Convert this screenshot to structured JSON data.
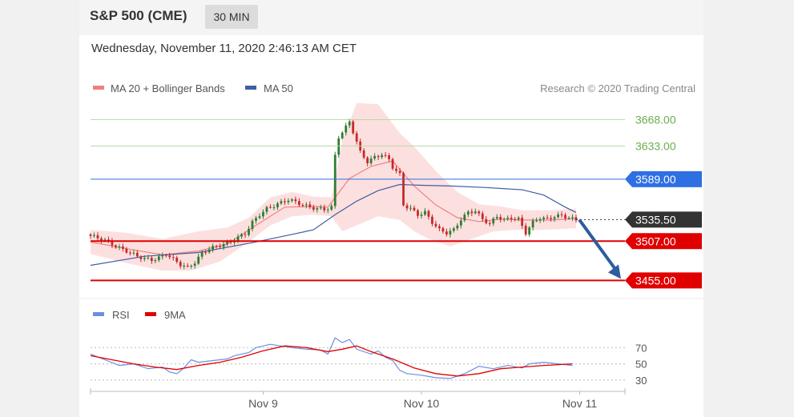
{
  "header": {
    "title": "S&P 500 (CME)",
    "timeframe": "30 MIN"
  },
  "datetime": "Wednesday, November 11, 2020 2:46:13 AM CET",
  "credit": "Research © 2020 Trading Central",
  "colors": {
    "up": "#2e7d32",
    "down": "#c62828",
    "bollinger_fill": "#fbdada",
    "ma20": "#f08080",
    "ma50": "#3e5fa3",
    "target": "#6ab04c",
    "pivot": "#2f6fe4",
    "support": "#e00000",
    "current": "#333333",
    "arrow": "#2c5d9e",
    "rsi": "#6b8fe0",
    "rsi_ma": "#e00000"
  },
  "chart_data": [
    {
      "type": "candlestick",
      "legend": [
        {
          "name": "MA 20 + Bollinger Bands",
          "color": "#f08080"
        },
        {
          "name": "MA 50",
          "color": "#3e5fa3"
        }
      ],
      "ylim": [
        3448,
        3680
      ],
      "x_ticks": [
        "Nov 9",
        "Nov 10",
        "Nov 11"
      ],
      "levels": [
        {
          "value": 3668.0,
          "label": "3668.00",
          "kind": "target"
        },
        {
          "value": 3633.0,
          "label": "3633.00",
          "kind": "target"
        },
        {
          "value": 3589.0,
          "label": "3589.00",
          "kind": "pivot"
        },
        {
          "value": 3535.5,
          "label": "3535.50",
          "kind": "current"
        },
        {
          "value": 3507.0,
          "label": "3507.00",
          "kind": "support"
        },
        {
          "value": 3455.0,
          "label": "3455.00",
          "kind": "support"
        }
      ],
      "arrow": {
        "from": 3535.5,
        "to": 3455.0,
        "direction": "down"
      },
      "price_path": [
        [
          0,
          3514
        ],
        [
          3,
          3510
        ],
        [
          5,
          3506
        ],
        [
          7,
          3500
        ],
        [
          9,
          3496
        ],
        [
          11,
          3492
        ],
        [
          13,
          3487
        ],
        [
          15,
          3484
        ],
        [
          17,
          3482
        ],
        [
          19,
          3485
        ],
        [
          21,
          3490
        ],
        [
          23,
          3483
        ],
        [
          25,
          3476
        ],
        [
          27,
          3472
        ],
        [
          29,
          3479
        ],
        [
          31,
          3491
        ],
        [
          33,
          3497
        ],
        [
          35,
          3500
        ],
        [
          37,
          3503
        ],
        [
          39,
          3506
        ],
        [
          41,
          3512
        ],
        [
          43,
          3517
        ],
        [
          45,
          3532
        ],
        [
          47,
          3542
        ],
        [
          49,
          3550
        ],
        [
          51,
          3554
        ],
        [
          53,
          3558
        ],
        [
          55,
          3562
        ],
        [
          57,
          3559
        ],
        [
          59,
          3555
        ],
        [
          61,
          3552
        ],
        [
          63,
          3550
        ],
        [
          65,
          3549
        ],
        [
          67,
          3552
        ],
        [
          68,
          3620
        ],
        [
          69,
          3645
        ],
        [
          71,
          3658
        ],
        [
          72,
          3665
        ],
        [
          73,
          3652
        ],
        [
          75,
          3625
        ],
        [
          77,
          3612
        ],
        [
          79,
          3618
        ],
        [
          81,
          3622
        ],
        [
          83,
          3615
        ],
        [
          84,
          3605
        ],
        [
          86,
          3595
        ],
        [
          87,
          3555
        ],
        [
          89,
          3550
        ],
        [
          91,
          3542
        ],
        [
          93,
          3545
        ],
        [
          95,
          3532
        ],
        [
          97,
          3522
        ],
        [
          99,
          3518
        ],
        [
          101,
          3522
        ],
        [
          103,
          3536
        ],
        [
          105,
          3545
        ],
        [
          107,
          3547
        ],
        [
          109,
          3536
        ],
        [
          111,
          3530
        ],
        [
          113,
          3540
        ],
        [
          115,
          3535
        ],
        [
          117,
          3538
        ],
        [
          119,
          3536
        ],
        [
          121,
          3518
        ],
        [
          123,
          3532
        ],
        [
          125,
          3538
        ],
        [
          127,
          3536
        ],
        [
          129,
          3540
        ],
        [
          131,
          3541
        ],
        [
          133,
          3538
        ],
        [
          135,
          3535
        ]
      ],
      "ma20": [
        [
          0,
          3506
        ],
        [
          10,
          3497
        ],
        [
          20,
          3489
        ],
        [
          30,
          3494
        ],
        [
          38,
          3503
        ],
        [
          46,
          3528
        ],
        [
          54,
          3552
        ],
        [
          62,
          3553
        ],
        [
          66,
          3552
        ],
        [
          72,
          3590
        ],
        [
          78,
          3606
        ],
        [
          84,
          3613
        ],
        [
          90,
          3580
        ],
        [
          96,
          3555
        ],
        [
          102,
          3538
        ],
        [
          108,
          3533
        ],
        [
          114,
          3536
        ],
        [
          120,
          3535
        ],
        [
          128,
          3535
        ],
        [
          135,
          3537
        ]
      ],
      "ma50": [
        [
          0,
          3475
        ],
        [
          15,
          3487
        ],
        [
          30,
          3492
        ],
        [
          45,
          3505
        ],
        [
          55,
          3515
        ],
        [
          62,
          3522
        ],
        [
          68,
          3542
        ],
        [
          74,
          3560
        ],
        [
          80,
          3574
        ],
        [
          86,
          3582
        ],
        [
          92,
          3581
        ],
        [
          100,
          3580
        ],
        [
          110,
          3578
        ],
        [
          120,
          3575
        ],
        [
          126,
          3568
        ],
        [
          132,
          3552
        ],
        [
          135,
          3545
        ]
      ],
      "bb_upper": [
        [
          0,
          3522
        ],
        [
          10,
          3518
        ],
        [
          20,
          3510
        ],
        [
          30,
          3520
        ],
        [
          38,
          3525
        ],
        [
          44,
          3538
        ],
        [
          50,
          3565
        ],
        [
          56,
          3572
        ],
        [
          62,
          3566
        ],
        [
          67,
          3565
        ],
        [
          70,
          3640
        ],
        [
          74,
          3690
        ],
        [
          80,
          3688
        ],
        [
          86,
          3650
        ],
        [
          90,
          3632
        ],
        [
          96,
          3600
        ],
        [
          102,
          3572
        ],
        [
          108,
          3556
        ],
        [
          114,
          3553
        ],
        [
          120,
          3548
        ],
        [
          128,
          3548
        ],
        [
          135,
          3550
        ]
      ],
      "bb_lower": [
        [
          0,
          3490
        ],
        [
          10,
          3478
        ],
        [
          20,
          3468
        ],
        [
          28,
          3468
        ],
        [
          36,
          3480
        ],
        [
          44,
          3506
        ],
        [
          50,
          3528
        ],
        [
          56,
          3540
        ],
        [
          62,
          3542
        ],
        [
          67,
          3540
        ],
        [
          70,
          3520
        ],
        [
          74,
          3528
        ],
        [
          80,
          3540
        ],
        [
          86,
          3535
        ],
        [
          90,
          3520
        ],
        [
          94,
          3510
        ],
        [
          100,
          3500
        ],
        [
          106,
          3510
        ],
        [
          112,
          3520
        ],
        [
          118,
          3522
        ],
        [
          126,
          3522
        ],
        [
          135,
          3524
        ]
      ]
    },
    {
      "type": "line",
      "legend": [
        {
          "name": "RSI",
          "color": "#6b8fe0"
        },
        {
          "name": "9MA",
          "color": "#e00000"
        }
      ],
      "ylim": [
        25,
        85
      ],
      "y_ticks": [
        70,
        50,
        30
      ],
      "series": [
        {
          "name": "RSI",
          "values": [
            [
              0,
              62
            ],
            [
              4,
              55
            ],
            [
              8,
              48
            ],
            [
              12,
              50
            ],
            [
              16,
              44
            ],
            [
              20,
              46
            ],
            [
              22,
              40
            ],
            [
              24,
              38
            ],
            [
              26,
              45
            ],
            [
              28,
              55
            ],
            [
              30,
              52
            ],
            [
              34,
              54
            ],
            [
              38,
              56
            ],
            [
              40,
              60
            ],
            [
              44,
              64
            ],
            [
              46,
              70
            ],
            [
              50,
              74
            ],
            [
              56,
              70
            ],
            [
              60,
              68
            ],
            [
              64,
              67
            ],
            [
              66,
              62
            ],
            [
              68,
              82
            ],
            [
              70,
              76
            ],
            [
              72,
              80
            ],
            [
              74,
              68
            ],
            [
              78,
              62
            ],
            [
              80,
              66
            ],
            [
              82,
              58
            ],
            [
              84,
              54
            ],
            [
              86,
              42
            ],
            [
              88,
              38
            ],
            [
              92,
              36
            ],
            [
              96,
              33
            ],
            [
              100,
              32
            ],
            [
              104,
              38
            ],
            [
              108,
              47
            ],
            [
              112,
              44
            ],
            [
              116,
              48
            ],
            [
              120,
              45
            ],
            [
              122,
              50
            ],
            [
              126,
              52
            ],
            [
              130,
              50
            ],
            [
              134,
              48
            ]
          ]
        },
        {
          "name": "9MA",
          "values": [
            [
              0,
              60
            ],
            [
              6,
              55
            ],
            [
              12,
              50
            ],
            [
              18,
              46
            ],
            [
              24,
              43
            ],
            [
              30,
              48
            ],
            [
              36,
              52
            ],
            [
              42,
              58
            ],
            [
              48,
              66
            ],
            [
              54,
              72
            ],
            [
              60,
              70
            ],
            [
              66,
              65
            ],
            [
              70,
              68
            ],
            [
              74,
              72
            ],
            [
              78,
              65
            ],
            [
              84,
              56
            ],
            [
              90,
              45
            ],
            [
              96,
              38
            ],
            [
              102,
              35
            ],
            [
              108,
              38
            ],
            [
              114,
              44
            ],
            [
              120,
              46
            ],
            [
              126,
              48
            ],
            [
              134,
              50
            ]
          ]
        }
      ]
    }
  ]
}
